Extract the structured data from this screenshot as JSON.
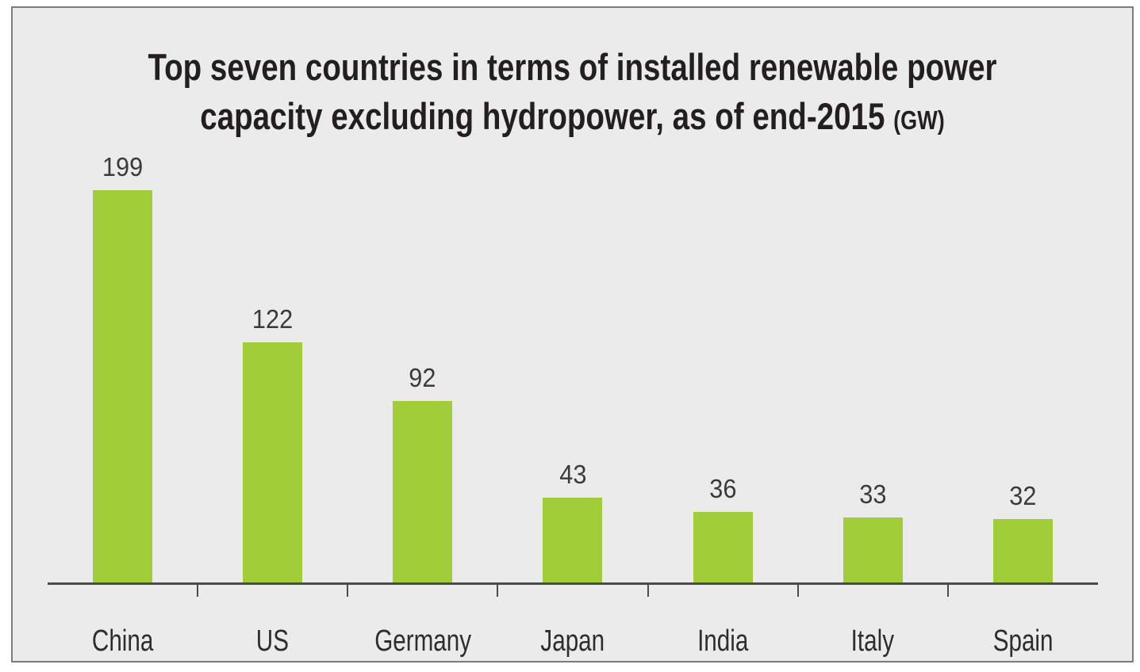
{
  "frame": {
    "background": "#ECEBEC",
    "border_color": "#7B7C7F"
  },
  "chart_data": {
    "type": "bar",
    "title": "Top seven countries in terms of installed renewable power capacity excluding hydropower, as of end-2015 (GW)",
    "title_line1": "Top seven countries in terms of installed renewable power",
    "title_line2": "capacity excluding hydropower, as of end-2015",
    "unit_label": "(GW)",
    "categories": [
      "China",
      "US",
      "Germany",
      "Japan",
      "India",
      "Italy",
      "Spain"
    ],
    "values": [
      199,
      122,
      92,
      43,
      36,
      33,
      32
    ],
    "xlabel": "",
    "ylabel": "",
    "ylim": [
      0,
      210
    ],
    "y_axis_visible": false,
    "grid": false,
    "legend": false,
    "value_labels_above_bars": true,
    "tick_marks_between_categories": true,
    "colors": {
      "bar": "#A1CD3B",
      "axis": "#4B4B4D",
      "title": "#231F20",
      "value_label": "#3A3A3C",
      "category_label": "#2D2D2F"
    }
  }
}
